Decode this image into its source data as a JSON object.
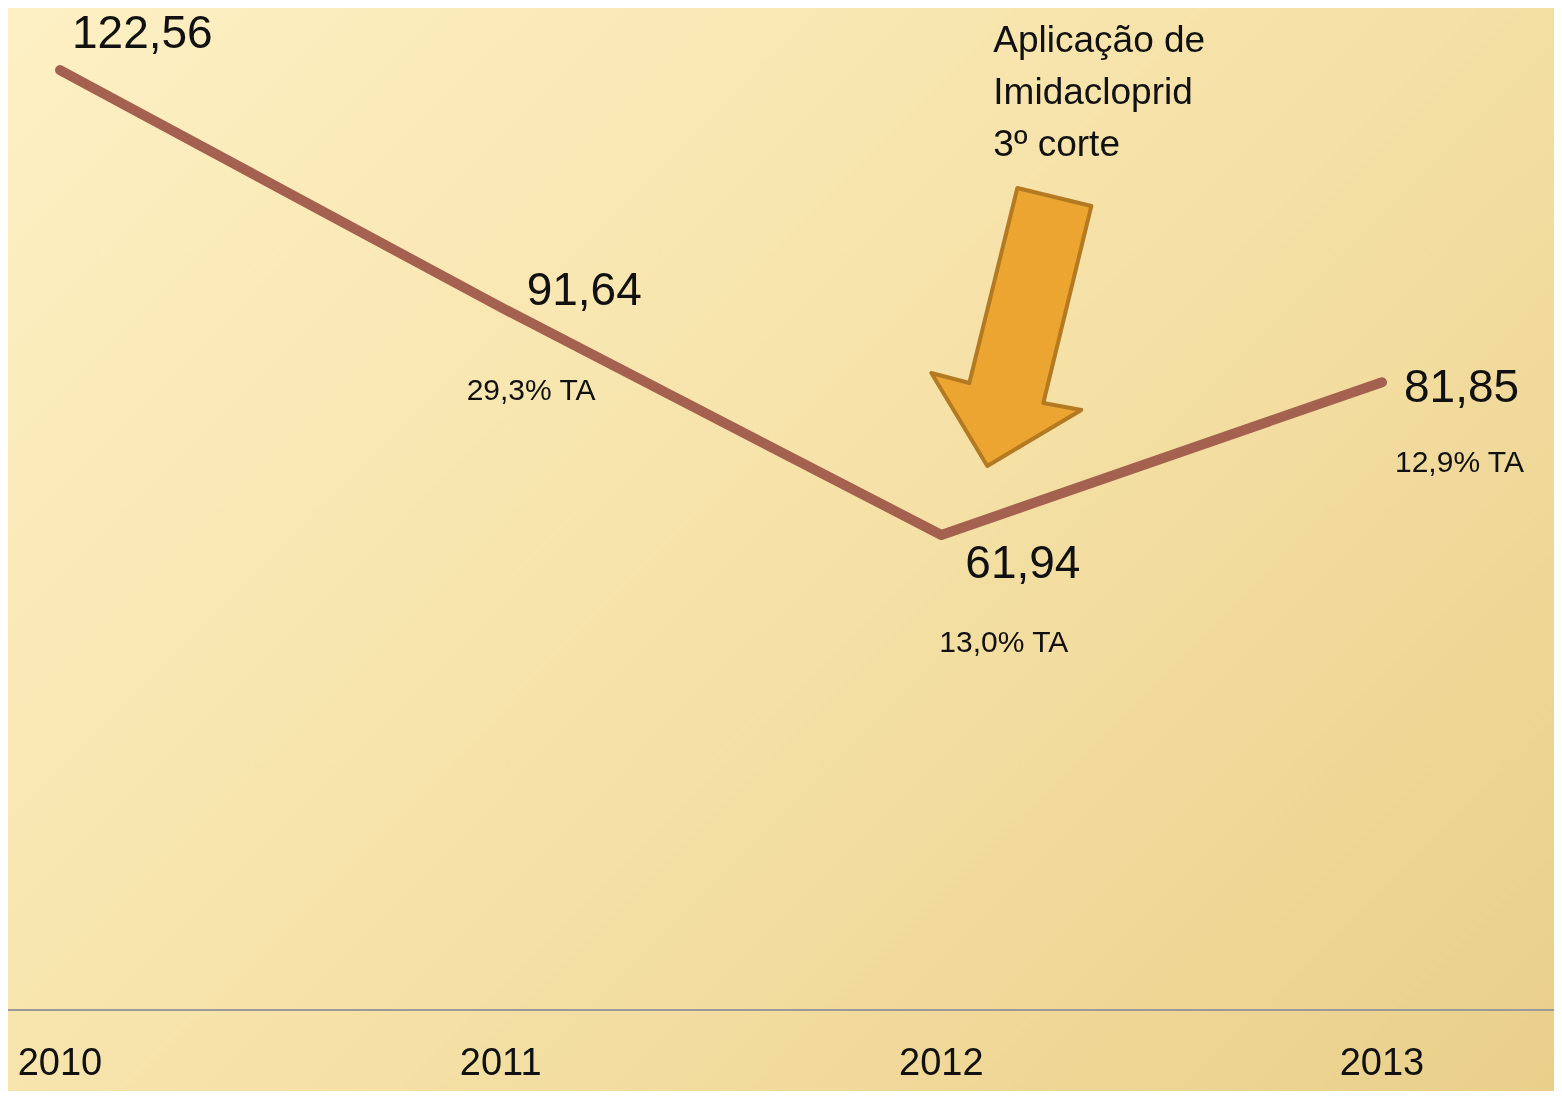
{
  "chart_data": {
    "type": "line",
    "categories": [
      "2010",
      "2011",
      "2012",
      "2013"
    ],
    "series": [
      {
        "color": "#a4614f",
        "values": [
          122.56,
          91.64,
          61.94,
          81.85
        ],
        "value_labels": [
          "122,56",
          "91,64",
          "61,94",
          "81,85"
        ]
      }
    ],
    "ylim": [
      0,
      130
    ],
    "tick_labels": "x",
    "marker": "none",
    "line_style": "solid",
    "annotations": [
      "29,3% TA",
      "13,0% TA",
      "12,9% TA",
      "Aplicação de\nImidacloprid\n3º corte"
    ]
  }
}
